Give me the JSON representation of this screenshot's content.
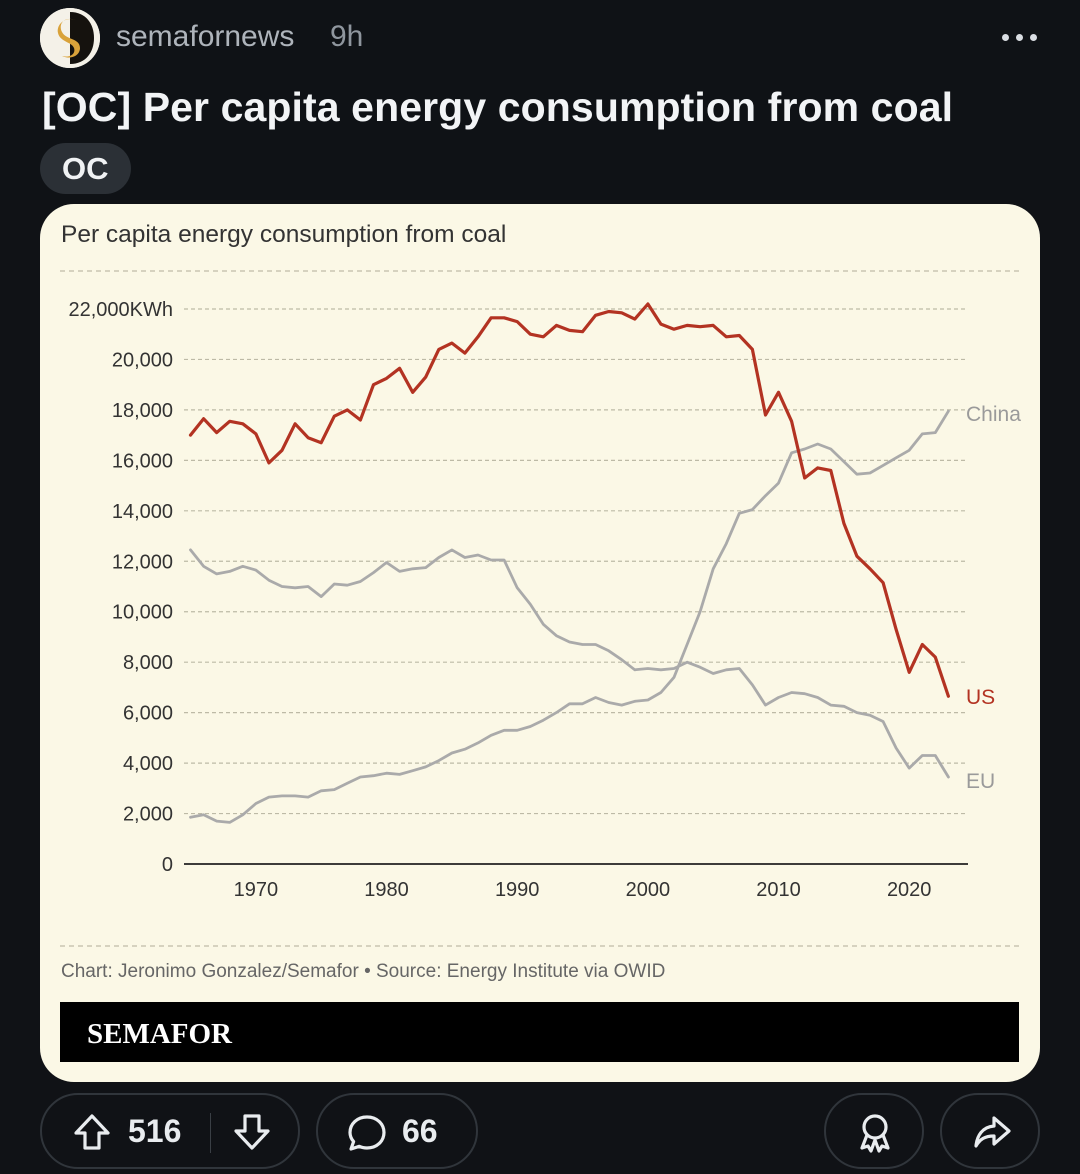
{
  "post": {
    "author": "semafornews",
    "time_ago": "9h",
    "title": "[OC] Per capita energy consumption from coal",
    "flair": "OC",
    "upvotes": "516",
    "comments": "66"
  },
  "icons": {
    "more": "more-dots-icon",
    "upvote": "arrow-up-icon",
    "downvote": "arrow-down-icon",
    "comment": "comment-bubble-icon",
    "award": "award-icon",
    "share": "share-arrow-icon"
  },
  "colors": {
    "us": "#b33322",
    "other": "#aaaaaa",
    "card_bg": "#fbf8e6",
    "page_bg": "#101216"
  },
  "chart_data": {
    "type": "line",
    "title": "Per capita energy consumption from coal",
    "ylim": [
      0,
      22000
    ],
    "xlim": [
      1964.5,
      2024.5
    ],
    "y_ticks": [
      {
        "value": 0,
        "label": "0"
      },
      {
        "value": 2000,
        "label": "2,000"
      },
      {
        "value": 4000,
        "label": "4,000"
      },
      {
        "value": 6000,
        "label": "6,000"
      },
      {
        "value": 8000,
        "label": "8,000"
      },
      {
        "value": 10000,
        "label": "10,000"
      },
      {
        "value": 12000,
        "label": "12,000"
      },
      {
        "value": 14000,
        "label": "14,000"
      },
      {
        "value": 16000,
        "label": "16,000"
      },
      {
        "value": 18000,
        "label": "18,000"
      },
      {
        "value": 20000,
        "label": "20,000"
      },
      {
        "value": 22000,
        "label": "22,000KWh"
      }
    ],
    "x_ticks": [
      {
        "value": 1970,
        "label": "1970"
      },
      {
        "value": 1980,
        "label": "1980"
      },
      {
        "value": 1990,
        "label": "1990"
      },
      {
        "value": 2000,
        "label": "2000"
      },
      {
        "value": 2010,
        "label": "2010"
      },
      {
        "value": 2020,
        "label": "2020"
      }
    ],
    "grid": true,
    "x_start": 1965,
    "series": [
      {
        "name": "US",
        "color": "#b33322",
        "values": [
          17000,
          17650,
          17100,
          17550,
          17450,
          17050,
          15900,
          16400,
          17450,
          16900,
          16700,
          17750,
          18000,
          17600,
          19000,
          19250,
          19650,
          18700,
          19300,
          20400,
          20650,
          20250,
          20900,
          21650,
          21650,
          21500,
          21000,
          20900,
          21350,
          21150,
          21100,
          21750,
          21900,
          21850,
          21600,
          22200,
          21400,
          21200,
          21350,
          21300,
          21350,
          20900,
          20950,
          20400,
          17800,
          18700,
          17550,
          15300,
          15700,
          15600,
          13500,
          12200,
          11700,
          11150,
          9300,
          7600,
          8700,
          8200,
          6650
        ]
      },
      {
        "name": "China",
        "color": "#aaaaaa",
        "values": [
          1850,
          1950,
          1700,
          1650,
          1950,
          2400,
          2650,
          2700,
          2700,
          2650,
          2900,
          2950,
          3200,
          3450,
          3500,
          3600,
          3550,
          3700,
          3850,
          4100,
          4400,
          4550,
          4800,
          5100,
          5300,
          5300,
          5450,
          5700,
          6000,
          6350,
          6350,
          6600,
          6400,
          6300,
          6450,
          6500,
          6800,
          7400,
          8700,
          10000,
          11700,
          12700,
          13900,
          14050,
          14600,
          15100,
          16300,
          16450,
          16650,
          16450,
          15950,
          15450,
          15500,
          15800,
          16100,
          16400,
          17050,
          17100,
          17950
        ]
      },
      {
        "name": "EU",
        "color": "#aaaaaa",
        "values": [
          12450,
          11800,
          11500,
          11600,
          11800,
          11650,
          11250,
          11000,
          10950,
          11000,
          10600,
          11100,
          11050,
          11200,
          11550,
          11950,
          11600,
          11700,
          11750,
          12150,
          12450,
          12150,
          12250,
          12050,
          12050,
          10950,
          10300,
          9500,
          9050,
          8800,
          8700,
          8700,
          8450,
          8100,
          7700,
          7750,
          7700,
          7750,
          8000,
          7800,
          7550,
          7700,
          7750,
          7100,
          6300,
          6600,
          6800,
          6750,
          6600,
          6300,
          6250,
          6000,
          5900,
          5650,
          4600,
          3800,
          4300,
          4300,
          3450
        ]
      }
    ],
    "labels": {
      "us": "US",
      "china": "China",
      "eu": "EU"
    },
    "credit": "Chart: Jeronimo Gonzalez/Semafor • Source: Energy Institute via OWID",
    "brand": "SEMAFOR"
  }
}
